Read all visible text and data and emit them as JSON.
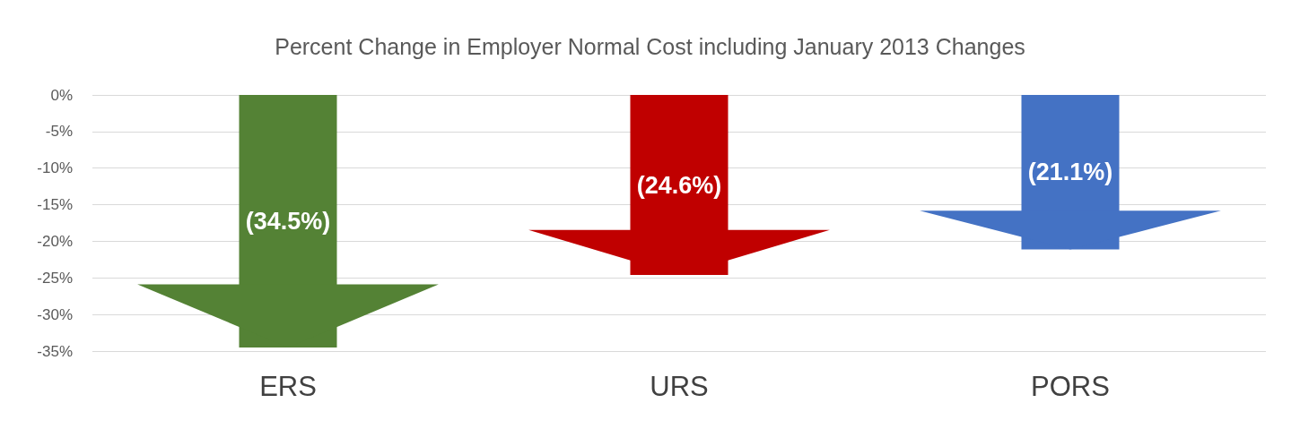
{
  "chart_data": {
    "type": "bar",
    "title": "Percent Change in Employer Normal Cost including January 2013 Changes",
    "categories": [
      "ERS",
      "URS",
      "PORS"
    ],
    "values": [
      -34.5,
      -24.6,
      -21.1
    ],
    "colors": [
      "#548235",
      "#c00000",
      "#4472c4"
    ],
    "value_labels": [
      "(34.5%)",
      "(24.6%)",
      "(21.1%)"
    ],
    "ylim": [
      -35,
      0
    ],
    "yticks": [
      {
        "value": 0,
        "label": "0%"
      },
      {
        "value": -5,
        "label": "-5%"
      },
      {
        "value": -10,
        "label": "-10%"
      },
      {
        "value": -15,
        "label": "-15%"
      },
      {
        "value": -20,
        "label": "-20%"
      },
      {
        "value": -25,
        "label": "-25%"
      },
      {
        "value": -30,
        "label": "-30%"
      },
      {
        "value": -35,
        "label": "-35%"
      }
    ],
    "grid": "y"
  }
}
